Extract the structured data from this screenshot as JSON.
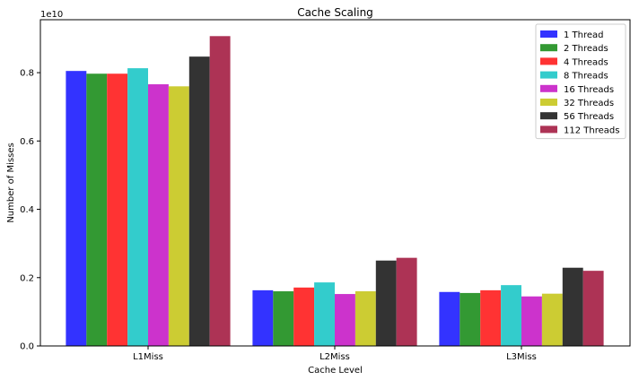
{
  "chart_data": {
    "type": "bar",
    "title": "Cache Scaling",
    "xlabel": "Cache Level",
    "ylabel": "Number of Misses",
    "y_multiplier_label": "1e10",
    "categories": [
      "L1Miss",
      "L2Miss",
      "L3Miss"
    ],
    "ylim": [
      0,
      0.955
    ],
    "yticks": [
      0.0,
      0.2,
      0.4,
      0.6,
      0.8
    ],
    "ytick_labels": [
      "0.0",
      "0.2",
      "0.4",
      "0.6",
      "0.8"
    ],
    "grid": false,
    "legend_position": "top-right",
    "series": [
      {
        "name": "1 Thread",
        "color": "#3333ff",
        "values": [
          0.805,
          0.163,
          0.158
        ]
      },
      {
        "name": "2 Threads",
        "color": "#339933",
        "values": [
          0.797,
          0.16,
          0.155
        ]
      },
      {
        "name": "4 Threads",
        "color": "#ff3333",
        "values": [
          0.797,
          0.171,
          0.163
        ]
      },
      {
        "name": "8 Threads",
        "color": "#33cccc",
        "values": [
          0.813,
          0.186,
          0.178
        ]
      },
      {
        "name": "16 Threads",
        "color": "#cc33cc",
        "values": [
          0.766,
          0.152,
          0.145
        ]
      },
      {
        "name": "32 Threads",
        "color": "#cccc33",
        "values": [
          0.76,
          0.16,
          0.153
        ]
      },
      {
        "name": "56 Threads",
        "color": "#333333",
        "values": [
          0.847,
          0.25,
          0.229
        ]
      },
      {
        "name": "112 Threads",
        "color": "#ad3355",
        "values": [
          0.907,
          0.258,
          0.22
        ]
      }
    ]
  }
}
